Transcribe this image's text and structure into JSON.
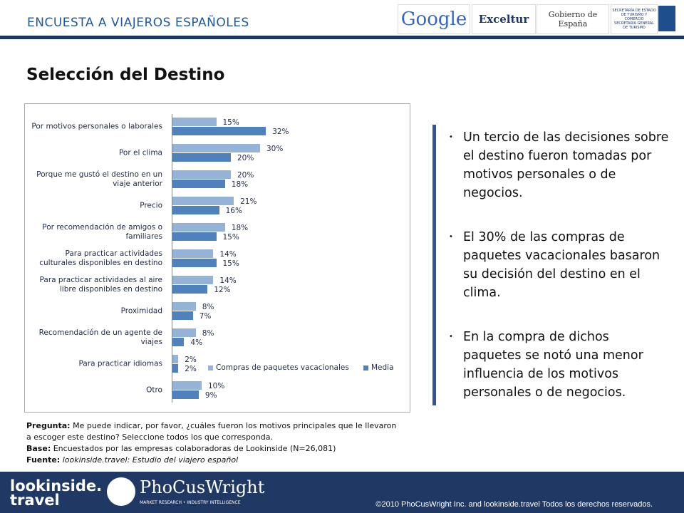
{
  "header": {
    "title": "ENCUESTA  A  VIAJEROS ESPAÑOLES",
    "logos": [
      "Google",
      "Exceltur",
      "Gobierno de España",
      "SECRETARÍA DE ESTADO DE TURISMO Y COMERCIO",
      "SECRETARÍA GENERAL DE TURISMO"
    ]
  },
  "title": "Selección del Destino",
  "chart_data": {
    "type": "hbar",
    "categories": [
      "Por motivos personales o laborales",
      "Por el clima",
      "Porque me gustó el destino en un viaje anterior",
      "Precio",
      "Por recomendación de amigos o familiares",
      "Para practicar actividades culturales disponibles en destino",
      "Para practicar actividades al aire libre disponibles en destino",
      "Proximidad",
      "Recomendación de un agente de viajes",
      "Para practicar idiomas",
      "Otro"
    ],
    "series": [
      {
        "name": "Compras de paquetes vacacionales",
        "color": "#95b3d7",
        "values": [
          15,
          30,
          20,
          21,
          18,
          14,
          14,
          8,
          8,
          2,
          10
        ],
        "value_labels": [
          "15%",
          "30%",
          "20%",
          "21%",
          "18%",
          "14%",
          "14%",
          "8%",
          "8%",
          "2%",
          "10%"
        ]
      },
      {
        "name": "Media",
        "color": "#4f81bd",
        "values": [
          32,
          20,
          18,
          16,
          15,
          15,
          12,
          7,
          4,
          2,
          9
        ],
        "value_labels": [
          "32%",
          "20%",
          "18%",
          "16%",
          "15%",
          "15%",
          "12%",
          "7%",
          "4%",
          "2%",
          "9%"
        ]
      }
    ],
    "xlim": [
      0,
      80
    ],
    "legend": "bottom-right"
  },
  "bullets": [
    "Un tercio de las decisiones sobre el destino fueron tomadas por motivos personales o de negocios.",
    "El 30% de las compras de paquetes vacacionales basaron su decisión del destino en el clima.",
    "En la compra de dichos paquetes se notó una menor influencia de los motivos personales o de negocios."
  ],
  "footnote": {
    "question_label": "Pregunta:",
    "question": "Me puede indicar, por favor, ¿cuáles fueron los motivos principales que le llevaron a escoger este destino? Seleccione todos los que corresponda.",
    "base_label": "Base:",
    "base": "Encuestados por las empresas colaboradoras de Lookinside (N=26,081)",
    "source_label": "Fuente:",
    "source": "lookinside.travel: Estudio del viajero español"
  },
  "footer": {
    "logo1": "lookinside.",
    "logo1b": "travel",
    "logo2": "PhoCusWright",
    "logo2_tag": "MARKET RESEARCH • INDUSTRY INTELLIGENCE",
    "copyright": "©2010 PhoCusWright Inc. and lookinside.travel Todos los derechos reservados."
  }
}
